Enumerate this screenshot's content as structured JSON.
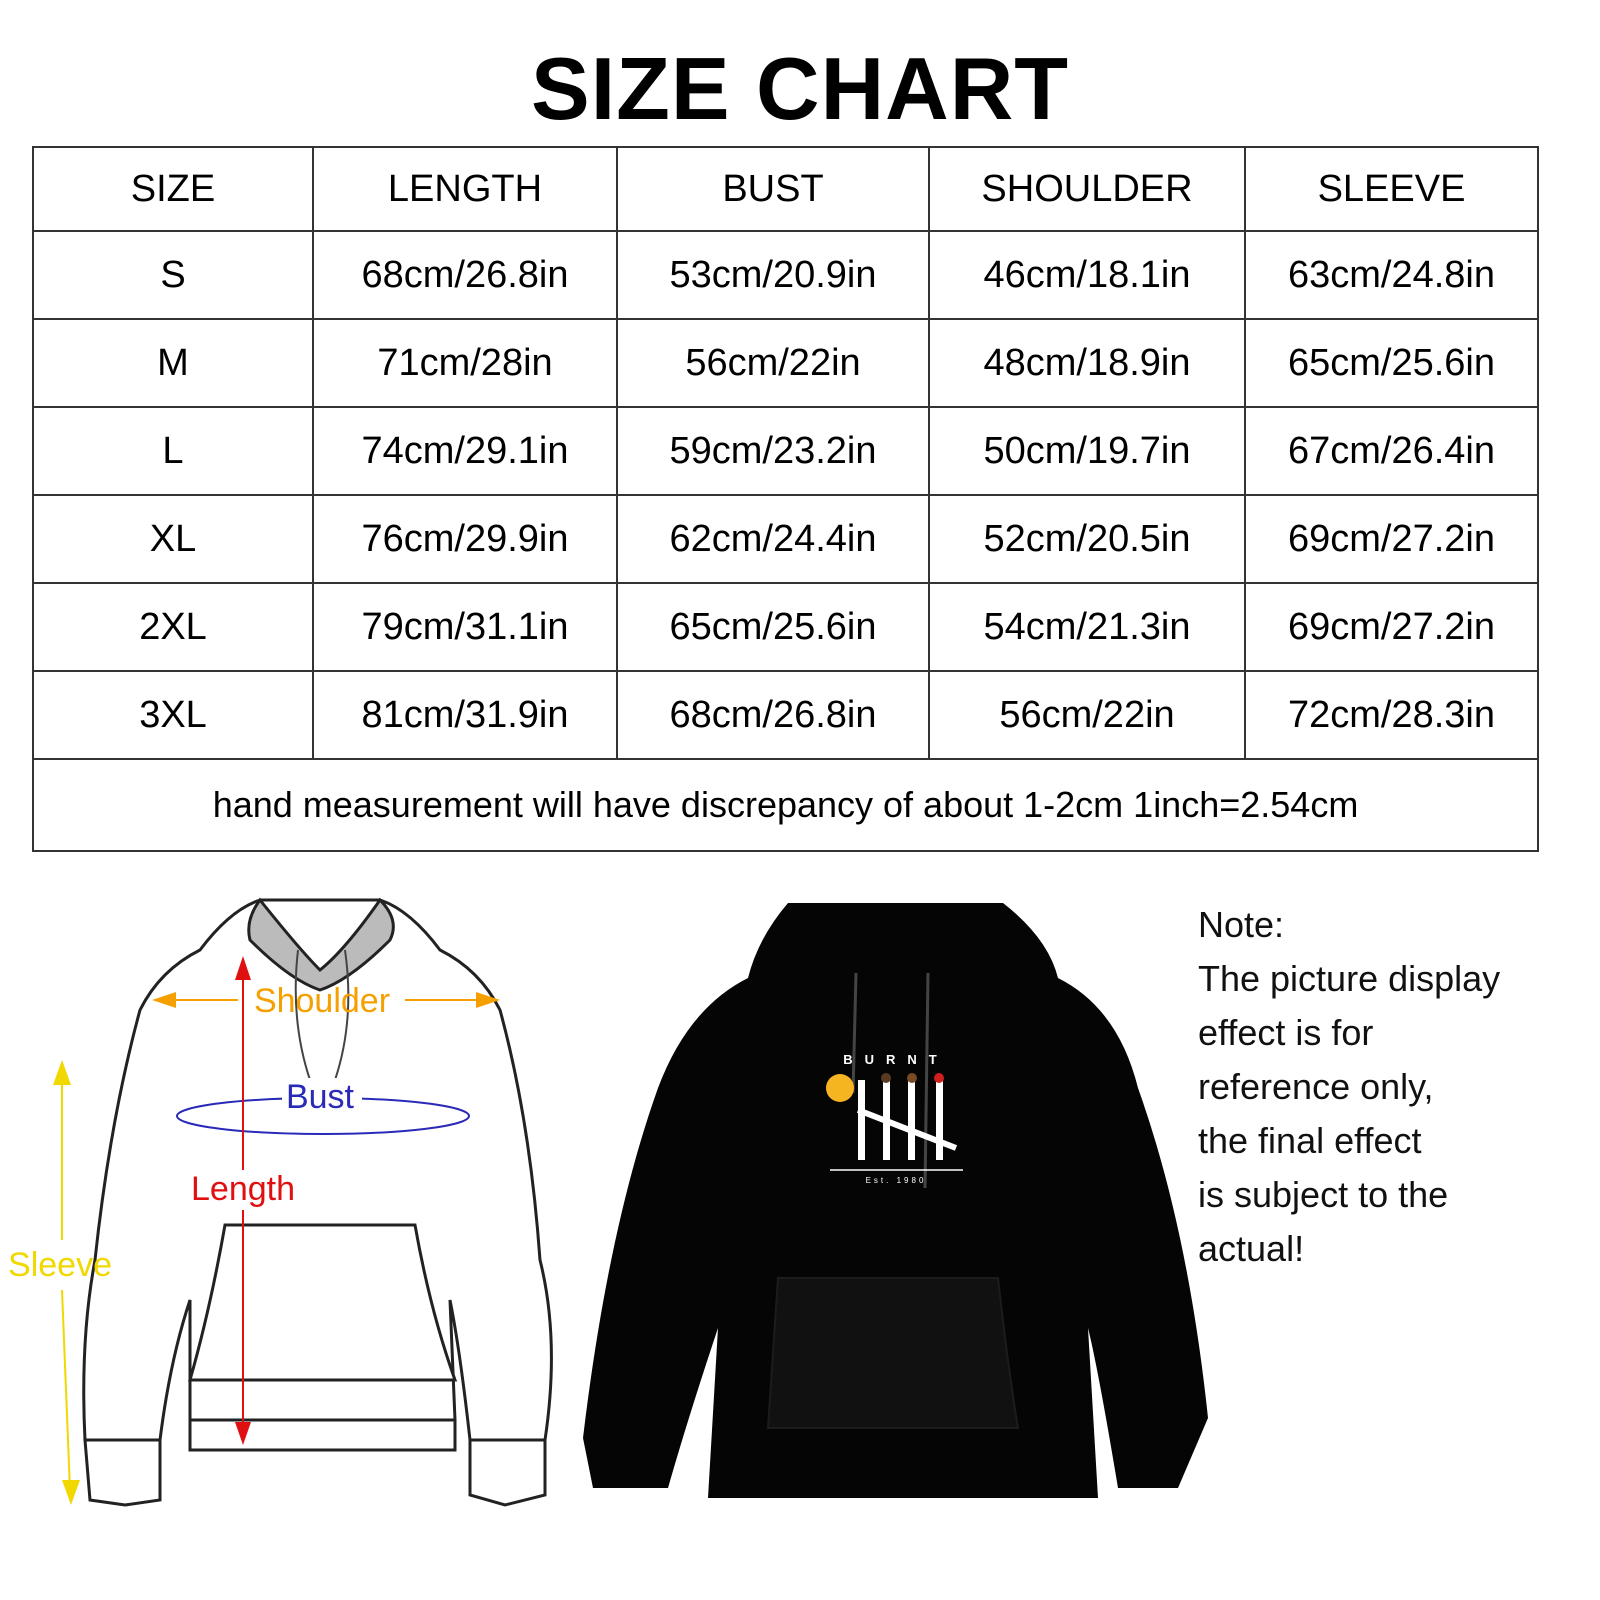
{
  "title": "SIZE CHART",
  "table": {
    "headers": [
      "SIZE",
      "LENGTH",
      "BUST",
      "SHOULDER",
      "SLEEVE"
    ],
    "rows": [
      [
        "S",
        "68cm/26.8in",
        "53cm/20.9in",
        "46cm/18.1in",
        "63cm/24.8in"
      ],
      [
        "M",
        "71cm/28in",
        "56cm/22in",
        "48cm/18.9in",
        "65cm/25.6in"
      ],
      [
        "L",
        "74cm/29.1in",
        "59cm/23.2in",
        "50cm/19.7in",
        "67cm/26.4in"
      ],
      [
        "XL",
        "76cm/29.9in",
        "62cm/24.4in",
        "52cm/20.5in",
        "69cm/27.2in"
      ],
      [
        "2XL",
        "79cm/31.1in",
        "65cm/25.6in",
        "54cm/21.3in",
        "69cm/27.2in"
      ],
      [
        "3XL",
        "81cm/31.9in",
        "68cm/26.8in",
        "56cm/22in",
        "72cm/28.3in"
      ]
    ],
    "footer": "hand measurement will have discrepancy of about 1-2cm 1inch=2.54cm"
  },
  "diagram": {
    "shoulder": "Shoulder",
    "bust": "Bust",
    "length": "Length",
    "sleeve": "Sleeve",
    "colors": {
      "shoulder": "#f5a000",
      "bust": "#2a2ab8",
      "length": "#e01010",
      "sleeve": "#f0d800"
    }
  },
  "product": {
    "print_text": "BURNT",
    "print_subtext": "Est. 1980",
    "color": "#000000"
  },
  "note": {
    "heading": "Note:",
    "lines": [
      "The picture display",
      "effect is for",
      "reference only,",
      "the final effect",
      "is subject to the",
      "actual!"
    ]
  }
}
